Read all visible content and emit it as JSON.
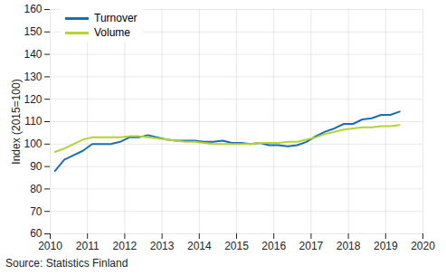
{
  "chart_data": {
    "type": "line",
    "x": [
      2010.125,
      2010.375,
      2010.625,
      2010.875,
      2011.125,
      2011.375,
      2011.625,
      2011.875,
      2012.125,
      2012.375,
      2012.625,
      2012.875,
      2013.125,
      2013.375,
      2013.625,
      2013.875,
      2014.125,
      2014.375,
      2014.625,
      2014.875,
      2015.125,
      2015.375,
      2015.625,
      2015.875,
      2016.125,
      2016.375,
      2016.625,
      2016.875,
      2017.125,
      2017.375,
      2017.625,
      2017.875,
      2018.125,
      2018.375,
      2018.625,
      2018.875,
      2019.125,
      2019.375
    ],
    "series": [
      {
        "name": "Turnover",
        "color": "#1b6fae",
        "values": [
          88,
          93,
          95,
          97,
          100,
          100,
          100,
          101,
          103,
          103,
          104,
          103,
          102,
          101.5,
          101.5,
          101.5,
          101,
          101,
          101.5,
          100.5,
          100.5,
          100,
          100.5,
          99.5,
          99.5,
          99,
          99.5,
          101,
          103.5,
          105.5,
          107,
          109,
          109,
          111,
          111.5,
          113,
          113,
          114.5
        ]
      },
      {
        "name": "Volume",
        "color": "#b5d334",
        "values": [
          96.5,
          98,
          100,
          102,
          103,
          103,
          103,
          103,
          103.5,
          103.5,
          103,
          102.5,
          102,
          101.5,
          101,
          101,
          100.5,
          100,
          100,
          100,
          100,
          100,
          100.5,
          100.5,
          100.5,
          101,
          101,
          102,
          103,
          104.5,
          105.5,
          106.5,
          107,
          107.5,
          107.5,
          108,
          108,
          108.5
        ]
      }
    ],
    "ylabel": "Index (2015=100)",
    "caption": "Source: Statistics Finland",
    "xlim": [
      2010,
      2020
    ],
    "xticks": [
      2010,
      2011,
      2012,
      2013,
      2014,
      2015,
      2016,
      2017,
      2018,
      2019,
      2020
    ],
    "ylim": [
      60,
      160
    ],
    "yticks": [
      60,
      70,
      80,
      90,
      100,
      110,
      120,
      130,
      140,
      150,
      160
    ],
    "grid": true,
    "legend": "top-left"
  }
}
